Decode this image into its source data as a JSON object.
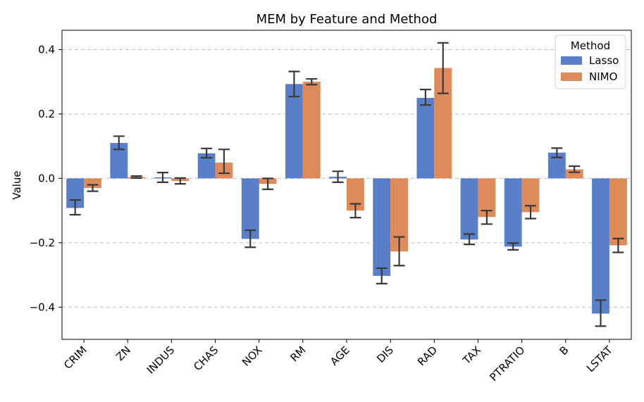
{
  "chart_data": {
    "type": "bar",
    "title": "MEM by Feature and Method",
    "xlabel": "",
    "ylabel": "Value",
    "ylim": [
      -0.5,
      0.46
    ],
    "yticks": [
      0.4,
      0.2,
      0.0,
      -0.2,
      -0.4
    ],
    "ytick_labels": [
      "0.4",
      "0.2",
      "0.0",
      "−0.2",
      "−0.4"
    ],
    "grid": "horizontal dashed",
    "categories": [
      "CRIM",
      "ZN",
      "INDUS",
      "CHAS",
      "NOX",
      "RM",
      "AGE",
      "DIS",
      "RAD",
      "TAX",
      "PTRATIO",
      "B",
      "LSTAT"
    ],
    "series": [
      {
        "name": "Lasso",
        "color": "#5a7fc9",
        "values": [
          -0.092,
          0.11,
          0.003,
          0.078,
          -0.188,
          0.293,
          0.005,
          -0.303,
          0.25,
          -0.19,
          -0.212,
          0.08,
          -0.42
        ],
        "err_low": [
          -0.113,
          0.09,
          -0.012,
          0.064,
          -0.214,
          0.254,
          -0.012,
          -0.327,
          0.228,
          -0.205,
          -0.222,
          0.065,
          -0.459
        ],
        "err_high": [
          -0.067,
          0.131,
          0.018,
          0.093,
          -0.161,
          0.332,
          0.022,
          -0.279,
          0.276,
          -0.173,
          -0.201,
          0.094,
          -0.378
        ]
      },
      {
        "name": "NIMO",
        "color": "#dd8b5a",
        "values": [
          -0.03,
          0.004,
          -0.008,
          0.049,
          -0.017,
          0.3,
          -0.1,
          -0.227,
          0.343,
          -0.12,
          -0.105,
          0.028,
          -0.208
        ],
        "err_low": [
          -0.04,
          0.001,
          -0.017,
          0.016,
          -0.034,
          0.291,
          -0.122,
          -0.271,
          0.264,
          -0.142,
          -0.125,
          0.019,
          -0.23
        ],
        "err_high": [
          -0.02,
          0.007,
          0.001,
          0.09,
          0.0,
          0.309,
          -0.079,
          -0.182,
          0.421,
          -0.1,
          -0.085,
          0.038,
          -0.187
        ]
      }
    ],
    "legend": {
      "title": "Method",
      "position": "top-right",
      "entries": [
        "Lasso",
        "NIMO"
      ]
    }
  }
}
